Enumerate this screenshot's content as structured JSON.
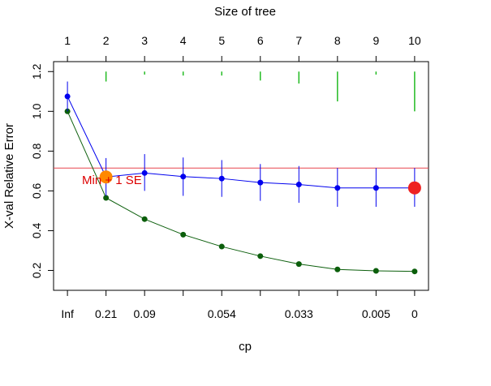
{
  "chart_data": {
    "type": "line",
    "top_title": "Size of tree",
    "xlabel": "cp",
    "ylabel": "X-val Relative Error",
    "ylim": [
      0.1,
      1.25
    ],
    "yticks": [
      0.2,
      0.4,
      0.6,
      0.8,
      1.0,
      1.2
    ],
    "ytick_labels": [
      "0.2",
      "0.4",
      "0.6",
      "0.8",
      "1.0",
      "1.2"
    ],
    "top_ticks": [
      "1",
      "2",
      "3",
      "4",
      "5",
      "6",
      "7",
      "8",
      "9",
      "10"
    ],
    "bottom_ticks": [
      {
        "pos": 1,
        "label": "Inf"
      },
      {
        "pos": 2,
        "label": "0.21"
      },
      {
        "pos": 3,
        "label": "0.09"
      },
      {
        "pos": 4,
        "label": ""
      },
      {
        "pos": 5,
        "label": "0.054"
      },
      {
        "pos": 6,
        "label": ""
      },
      {
        "pos": 7,
        "label": "0.033"
      },
      {
        "pos": 8,
        "label": ""
      },
      {
        "pos": 9,
        "label": "0.005"
      },
      {
        "pos": 10,
        "label": "0"
      }
    ],
    "xrange": [
      0.64,
      10.36
    ],
    "hline": {
      "y": 0.715,
      "color": "#e8454f"
    },
    "min_se_label": "Min + 1 SE",
    "xval_error": {
      "color": "#0000ee",
      "values": [
        1.075,
        0.67,
        0.69,
        0.672,
        0.662,
        0.642,
        0.632,
        0.615,
        0.615,
        0.615
      ],
      "err_low": [
        1.0,
        0.575,
        0.6,
        0.575,
        0.57,
        0.55,
        0.54,
        0.52,
        0.52,
        0.52
      ],
      "err_high": [
        1.15,
        0.765,
        0.785,
        0.768,
        0.755,
        0.735,
        0.725,
        0.715,
        0.715,
        0.715
      ]
    },
    "training_error": {
      "color": "#0b5e0b",
      "values": [
        1.0,
        0.565,
        0.458,
        0.38,
        0.32,
        0.272,
        0.232,
        0.205,
        0.198,
        0.195
      ]
    },
    "variability_marks": {
      "color": "#22bb22",
      "ranges": [
        null,
        [
          1.15,
          1.2
        ],
        [
          1.185,
          1.2
        ],
        [
          1.18,
          1.2
        ],
        [
          1.18,
          1.2
        ],
        [
          1.155,
          1.2
        ],
        [
          1.14,
          1.2
        ],
        [
          1.05,
          1.2
        ],
        [
          1.185,
          1.2
        ],
        [
          1.0,
          1.2
        ]
      ]
    },
    "selected_marker": {
      "tree_size": 2,
      "color": "#ff8800"
    },
    "min_marker": {
      "tree_size": 10,
      "color": "#ee2222"
    }
  }
}
